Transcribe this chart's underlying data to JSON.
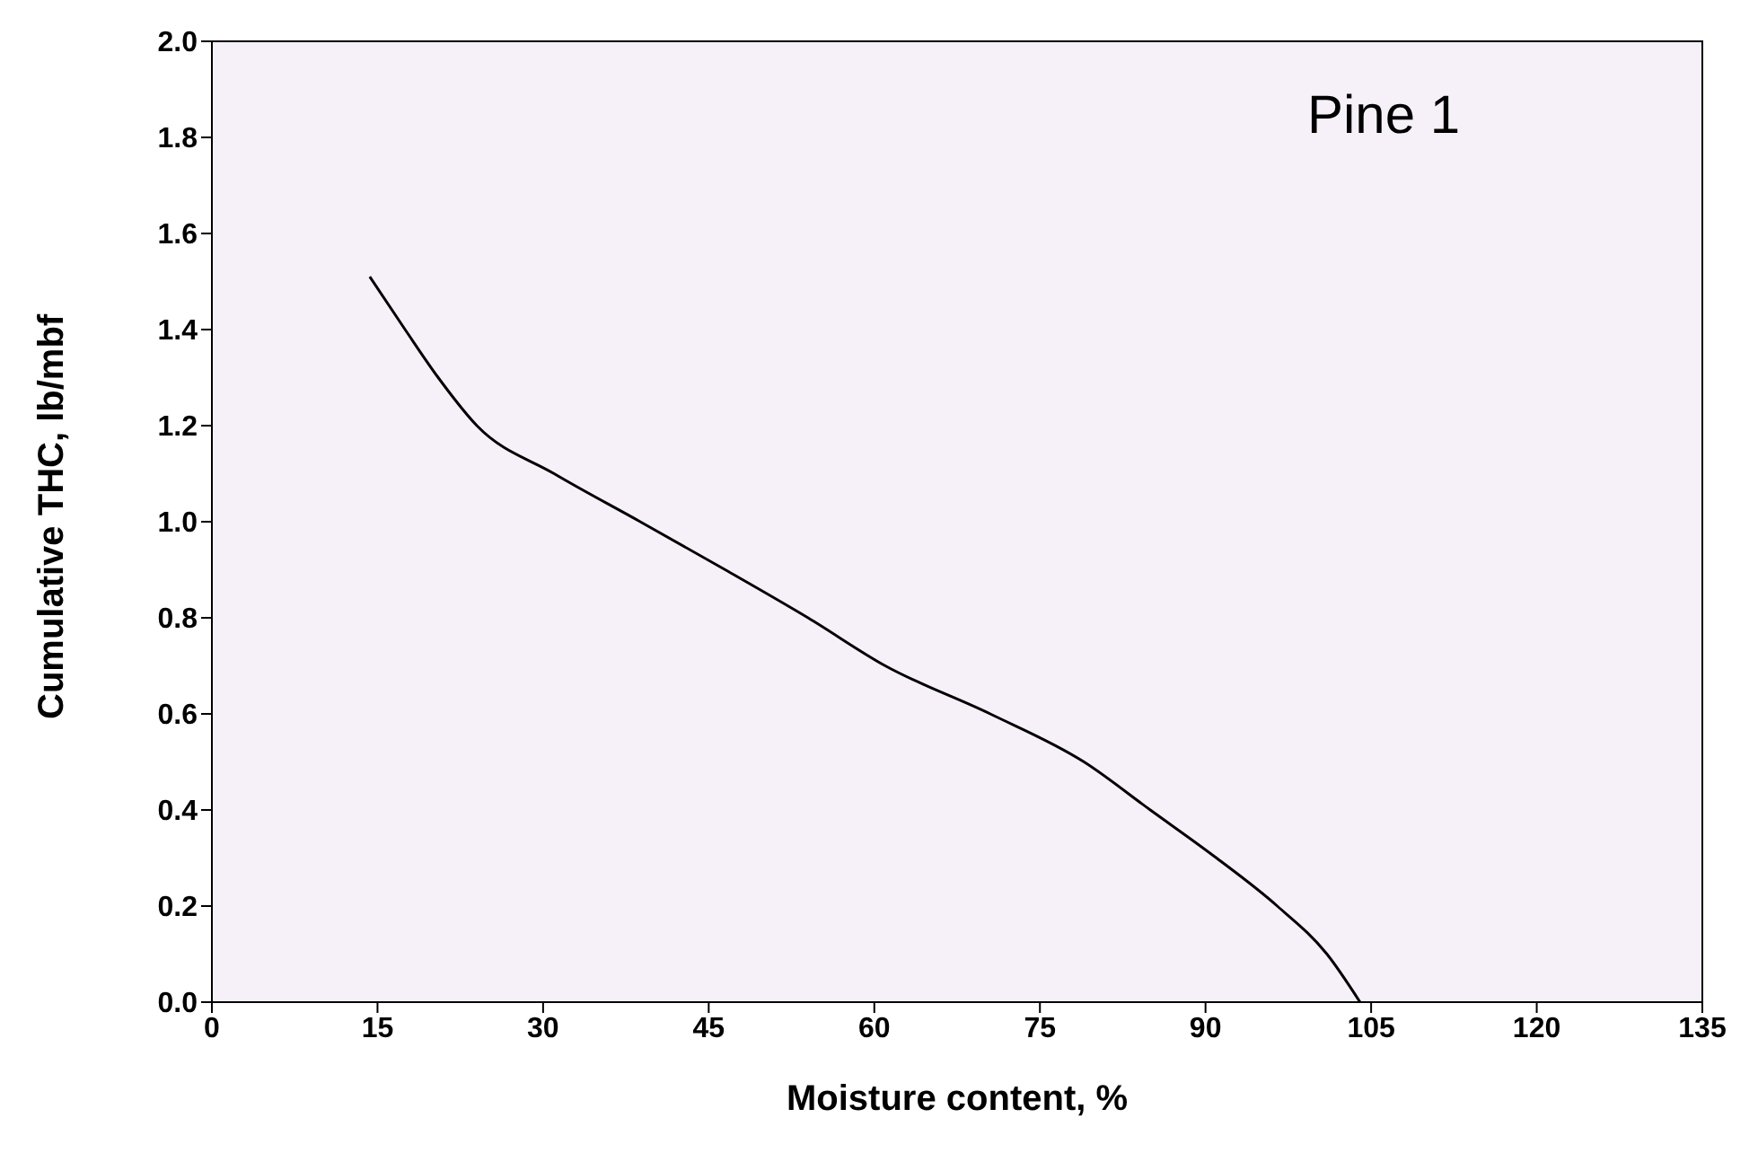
{
  "chart_data": {
    "type": "line",
    "title": "Pine 1",
    "xlabel": "Moisture content, %",
    "ylabel": "Cumulative THC, lb/mbf",
    "x": [
      14.3,
      17.5,
      20.5,
      24,
      31,
      38.8,
      46.5,
      54,
      61,
      70.5,
      79,
      85,
      91,
      96.5,
      101,
      104
    ],
    "series": [
      {
        "color": "#000000",
        "values": [
          1.51,
          1.4,
          1.3,
          1.2,
          1.1,
          1.0,
          0.9,
          0.8,
          0.7,
          0.6,
          0.5,
          0.4,
          0.3,
          0.2,
          0.1,
          0.0
        ]
      }
    ],
    "xlim": [
      0,
      135
    ],
    "xticks": [
      0,
      15,
      30,
      45,
      60,
      75,
      90,
      105,
      120,
      135
    ],
    "ylim": [
      0,
      2
    ],
    "yticks": [
      {
        "value": 0,
        "label": "0.0"
      },
      0.2,
      0.4,
      0.6,
      0.8,
      {
        "value": 1,
        "label": "1.0"
      },
      1.2,
      1.4,
      1.6,
      1.8,
      {
        "value": 2,
        "label": "2.0"
      }
    ],
    "line_style": "solid"
  }
}
